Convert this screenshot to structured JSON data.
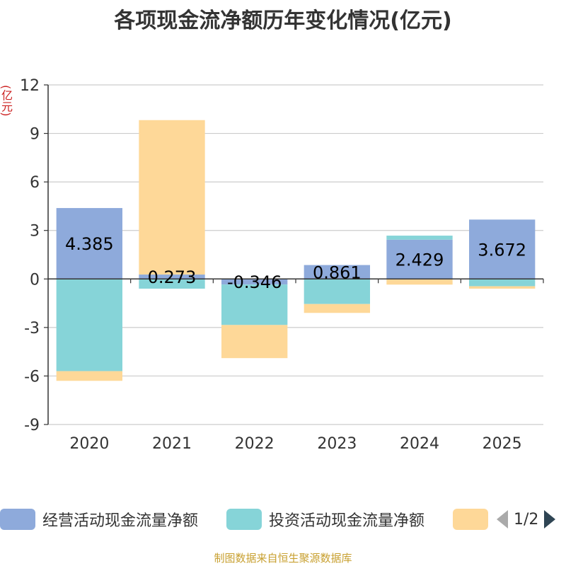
{
  "title": "各项现金流净额历年变化情况(亿元)",
  "y_unit": "(亿元)",
  "source": "制图数据来自恒生聚源数据库",
  "legend": {
    "items": [
      {
        "label": "经营活动现金流量净额",
        "color": "#8eaadb"
      },
      {
        "label": "投资活动现金流量净额",
        "color": "#86d4d8"
      },
      {
        "label": "",
        "color": "#fed898"
      }
    ],
    "page": "1/2"
  },
  "colors": {
    "grid": "#cccccc",
    "axis": "#333333",
    "label": "#000000"
  },
  "chart_data": {
    "type": "bar",
    "stacked": true,
    "title": "各项现金流净额历年变化情况(亿元)",
    "ylabel": "(亿元)",
    "ylim": [
      -9,
      12
    ],
    "yticks": [
      12,
      9,
      6,
      3,
      0,
      -3,
      -6,
      -9
    ],
    "categories": [
      "2020",
      "2021",
      "2022",
      "2023",
      "2024",
      "2025"
    ],
    "series": [
      {
        "name": "经营活动现金流量净额",
        "color": "#8eaadb",
        "values": [
          4.385,
          0.273,
          -0.346,
          0.861,
          2.429,
          3.672
        ],
        "show_labels": true
      },
      {
        "name": "投资活动现金流量净额",
        "color": "#86d4d8",
        "values": [
          -5.7,
          -0.6,
          -2.5,
          -1.55,
          0.25,
          -0.45
        ],
        "show_labels": false
      },
      {
        "name": "",
        "color": "#fed898",
        "values": [
          -0.6,
          9.55,
          -2.05,
          -0.55,
          -0.35,
          -0.15
        ],
        "show_labels": false
      }
    ]
  }
}
